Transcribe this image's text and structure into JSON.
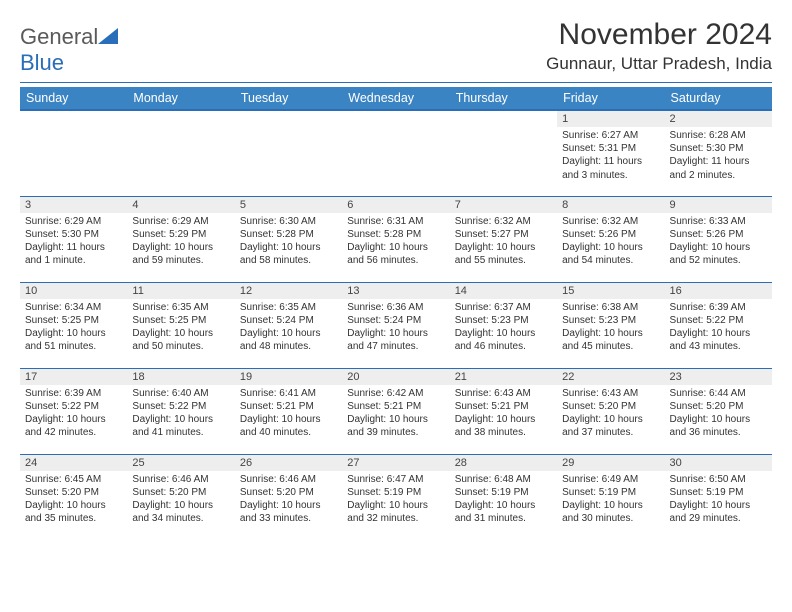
{
  "logo": {
    "word1": "General",
    "word2": "Blue"
  },
  "title": "November 2024",
  "location": "Gunnaur, Uttar Pradesh, India",
  "colors": {
    "header_bg": "#3b84c4",
    "accent": "#2a6db8",
    "daynum_bg": "#eeeeee",
    "text": "#333333",
    "logo_gray": "#5a5a5a",
    "page_bg": "#ffffff"
  },
  "typography": {
    "title_fontsize": 30,
    "location_fontsize": 17,
    "weekday_fontsize": 12.5,
    "daynum_fontsize": 11,
    "cell_fontsize": 10,
    "font_family": "Arial"
  },
  "weekdays": [
    "Sunday",
    "Monday",
    "Tuesday",
    "Wednesday",
    "Thursday",
    "Friday",
    "Saturday"
  ],
  "weeks": [
    [
      null,
      null,
      null,
      null,
      null,
      {
        "n": "1",
        "sr": "Sunrise: 6:27 AM",
        "ss": "Sunset: 5:31 PM",
        "dl": "Daylight: 11 hours and 3 minutes."
      },
      {
        "n": "2",
        "sr": "Sunrise: 6:28 AM",
        "ss": "Sunset: 5:30 PM",
        "dl": "Daylight: 11 hours and 2 minutes."
      }
    ],
    [
      {
        "n": "3",
        "sr": "Sunrise: 6:29 AM",
        "ss": "Sunset: 5:30 PM",
        "dl": "Daylight: 11 hours and 1 minute."
      },
      {
        "n": "4",
        "sr": "Sunrise: 6:29 AM",
        "ss": "Sunset: 5:29 PM",
        "dl": "Daylight: 10 hours and 59 minutes."
      },
      {
        "n": "5",
        "sr": "Sunrise: 6:30 AM",
        "ss": "Sunset: 5:28 PM",
        "dl": "Daylight: 10 hours and 58 minutes."
      },
      {
        "n": "6",
        "sr": "Sunrise: 6:31 AM",
        "ss": "Sunset: 5:28 PM",
        "dl": "Daylight: 10 hours and 56 minutes."
      },
      {
        "n": "7",
        "sr": "Sunrise: 6:32 AM",
        "ss": "Sunset: 5:27 PM",
        "dl": "Daylight: 10 hours and 55 minutes."
      },
      {
        "n": "8",
        "sr": "Sunrise: 6:32 AM",
        "ss": "Sunset: 5:26 PM",
        "dl": "Daylight: 10 hours and 54 minutes."
      },
      {
        "n": "9",
        "sr": "Sunrise: 6:33 AM",
        "ss": "Sunset: 5:26 PM",
        "dl": "Daylight: 10 hours and 52 minutes."
      }
    ],
    [
      {
        "n": "10",
        "sr": "Sunrise: 6:34 AM",
        "ss": "Sunset: 5:25 PM",
        "dl": "Daylight: 10 hours and 51 minutes."
      },
      {
        "n": "11",
        "sr": "Sunrise: 6:35 AM",
        "ss": "Sunset: 5:25 PM",
        "dl": "Daylight: 10 hours and 50 minutes."
      },
      {
        "n": "12",
        "sr": "Sunrise: 6:35 AM",
        "ss": "Sunset: 5:24 PM",
        "dl": "Daylight: 10 hours and 48 minutes."
      },
      {
        "n": "13",
        "sr": "Sunrise: 6:36 AM",
        "ss": "Sunset: 5:24 PM",
        "dl": "Daylight: 10 hours and 47 minutes."
      },
      {
        "n": "14",
        "sr": "Sunrise: 6:37 AM",
        "ss": "Sunset: 5:23 PM",
        "dl": "Daylight: 10 hours and 46 minutes."
      },
      {
        "n": "15",
        "sr": "Sunrise: 6:38 AM",
        "ss": "Sunset: 5:23 PM",
        "dl": "Daylight: 10 hours and 45 minutes."
      },
      {
        "n": "16",
        "sr": "Sunrise: 6:39 AM",
        "ss": "Sunset: 5:22 PM",
        "dl": "Daylight: 10 hours and 43 minutes."
      }
    ],
    [
      {
        "n": "17",
        "sr": "Sunrise: 6:39 AM",
        "ss": "Sunset: 5:22 PM",
        "dl": "Daylight: 10 hours and 42 minutes."
      },
      {
        "n": "18",
        "sr": "Sunrise: 6:40 AM",
        "ss": "Sunset: 5:22 PM",
        "dl": "Daylight: 10 hours and 41 minutes."
      },
      {
        "n": "19",
        "sr": "Sunrise: 6:41 AM",
        "ss": "Sunset: 5:21 PM",
        "dl": "Daylight: 10 hours and 40 minutes."
      },
      {
        "n": "20",
        "sr": "Sunrise: 6:42 AM",
        "ss": "Sunset: 5:21 PM",
        "dl": "Daylight: 10 hours and 39 minutes."
      },
      {
        "n": "21",
        "sr": "Sunrise: 6:43 AM",
        "ss": "Sunset: 5:21 PM",
        "dl": "Daylight: 10 hours and 38 minutes."
      },
      {
        "n": "22",
        "sr": "Sunrise: 6:43 AM",
        "ss": "Sunset: 5:20 PM",
        "dl": "Daylight: 10 hours and 37 minutes."
      },
      {
        "n": "23",
        "sr": "Sunrise: 6:44 AM",
        "ss": "Sunset: 5:20 PM",
        "dl": "Daylight: 10 hours and 36 minutes."
      }
    ],
    [
      {
        "n": "24",
        "sr": "Sunrise: 6:45 AM",
        "ss": "Sunset: 5:20 PM",
        "dl": "Daylight: 10 hours and 35 minutes."
      },
      {
        "n": "25",
        "sr": "Sunrise: 6:46 AM",
        "ss": "Sunset: 5:20 PM",
        "dl": "Daylight: 10 hours and 34 minutes."
      },
      {
        "n": "26",
        "sr": "Sunrise: 6:46 AM",
        "ss": "Sunset: 5:20 PM",
        "dl": "Daylight: 10 hours and 33 minutes."
      },
      {
        "n": "27",
        "sr": "Sunrise: 6:47 AM",
        "ss": "Sunset: 5:19 PM",
        "dl": "Daylight: 10 hours and 32 minutes."
      },
      {
        "n": "28",
        "sr": "Sunrise: 6:48 AM",
        "ss": "Sunset: 5:19 PM",
        "dl": "Daylight: 10 hours and 31 minutes."
      },
      {
        "n": "29",
        "sr": "Sunrise: 6:49 AM",
        "ss": "Sunset: 5:19 PM",
        "dl": "Daylight: 10 hours and 30 minutes."
      },
      {
        "n": "30",
        "sr": "Sunrise: 6:50 AM",
        "ss": "Sunset: 5:19 PM",
        "dl": "Daylight: 10 hours and 29 minutes."
      }
    ]
  ]
}
